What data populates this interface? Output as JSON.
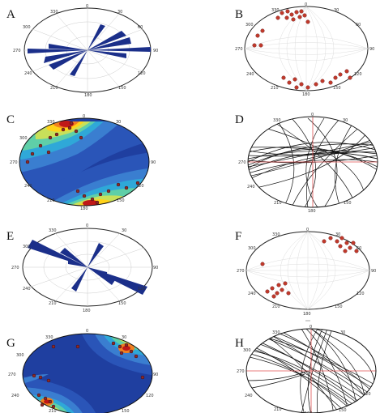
{
  "panels": [
    {
      "id": "A",
      "label": "A",
      "kind": "rose",
      "ticks": [
        "0",
        "30",
        "60",
        "90",
        "120",
        "150",
        "180",
        "210",
        "240",
        "270",
        "300",
        "330"
      ]
    },
    {
      "id": "B",
      "label": "B",
      "kind": "poles",
      "ticks": [
        "0",
        "30",
        "60",
        "90",
        "120",
        "150",
        "180",
        "210",
        "240",
        "270",
        "300",
        "330"
      ]
    },
    {
      "id": "C",
      "label": "C",
      "kind": "contour",
      "ticks": [
        "0",
        "30",
        "60",
        "90",
        "120",
        "150",
        "180",
        "210",
        "240",
        "270",
        "300",
        "330"
      ]
    },
    {
      "id": "D",
      "label": "D",
      "kind": "greatcircles",
      "ticks": [
        "0",
        "30",
        "60",
        "90",
        "120",
        "150",
        "180",
        "210",
        "240",
        "270",
        "300",
        "330"
      ]
    },
    {
      "id": "E",
      "label": "E",
      "kind": "rose",
      "ticks": [
        "0",
        "30",
        "60",
        "90",
        "120",
        "150",
        "180",
        "210",
        "240",
        "270",
        "300",
        "330"
      ]
    },
    {
      "id": "F",
      "label": "F",
      "kind": "poles",
      "ticks": [
        "0",
        "30",
        "60",
        "90",
        "120",
        "150",
        "180",
        "210",
        "240",
        "270",
        "300",
        "330"
      ]
    },
    {
      "id": "G",
      "label": "G",
      "kind": "contour",
      "ticks": [
        "0",
        "30",
        "60",
        "90",
        "120",
        "150",
        "180",
        "210",
        "240",
        "270",
        "300",
        "330"
      ]
    },
    {
      "id": "H",
      "label": "H",
      "kind": "greatcircles",
      "ticks": [
        "0",
        "30",
        "60",
        "90",
        "120",
        "150",
        "180",
        "210",
        "240",
        "270",
        "300",
        "330"
      ]
    }
  ],
  "colors": {
    "rose_fill": "#1b2f8a",
    "pole_fill": "#c0392b",
    "contour_base": "#1f3fa0",
    "grid": "#bbbbbb",
    "cross": "#e05050",
    "trace": "#111111"
  }
}
